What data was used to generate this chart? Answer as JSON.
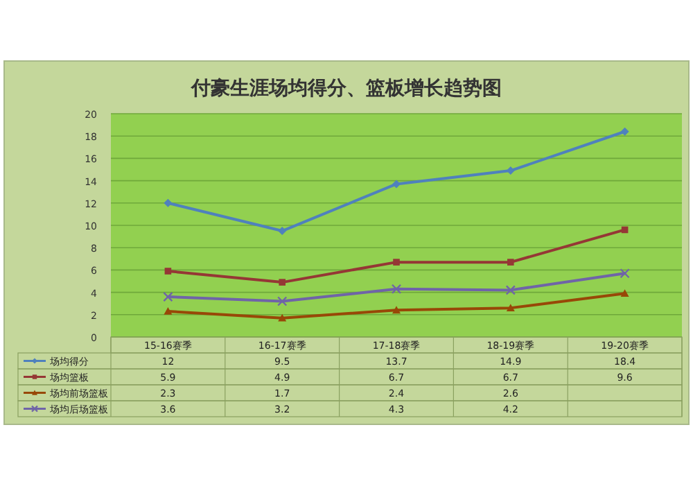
{
  "chart_data": {
    "type": "line",
    "title": "付豪生涯场均得分、篮板增长趋势图",
    "categories": [
      "15-16赛季",
      "16-17赛季",
      "17-18赛季",
      "18-19赛季",
      "19-20赛季"
    ],
    "series": [
      {
        "name": "场均得分",
        "color": "#4f81bd",
        "marker": "diamond",
        "values": [
          12,
          9.5,
          13.7,
          14.9,
          18.4
        ],
        "value_labels": [
          "12",
          "9.5",
          "13.7",
          "14.9",
          "18.4"
        ]
      },
      {
        "name": "场均篮板",
        "color": "#953735",
        "marker": "square",
        "values": [
          5.9,
          4.9,
          6.7,
          6.7,
          9.6
        ],
        "value_labels": [
          "5.9",
          "4.9",
          "6.7",
          "6.7",
          "9.6"
        ]
      },
      {
        "name": "场均前场篮板",
        "color": "#984807",
        "marker": "triangle",
        "values": [
          2.3,
          1.7,
          2.4,
          2.6,
          3.9
        ],
        "value_labels": [
          "2.3",
          "1.7",
          "2.4",
          "2.6",
          null
        ]
      },
      {
        "name": "场均后场篮板",
        "color": "#6f64a8",
        "marker": "cross",
        "values": [
          3.6,
          3.2,
          4.3,
          4.2,
          5.7
        ],
        "value_labels": [
          "3.6",
          "3.2",
          "4.3",
          "4.2",
          null
        ]
      }
    ],
    "ylim": [
      0,
      20
    ],
    "yticks": [
      0,
      2,
      4,
      6,
      8,
      10,
      12,
      14,
      16,
      18,
      20
    ],
    "grid": "y",
    "legend": "bottom left"
  }
}
